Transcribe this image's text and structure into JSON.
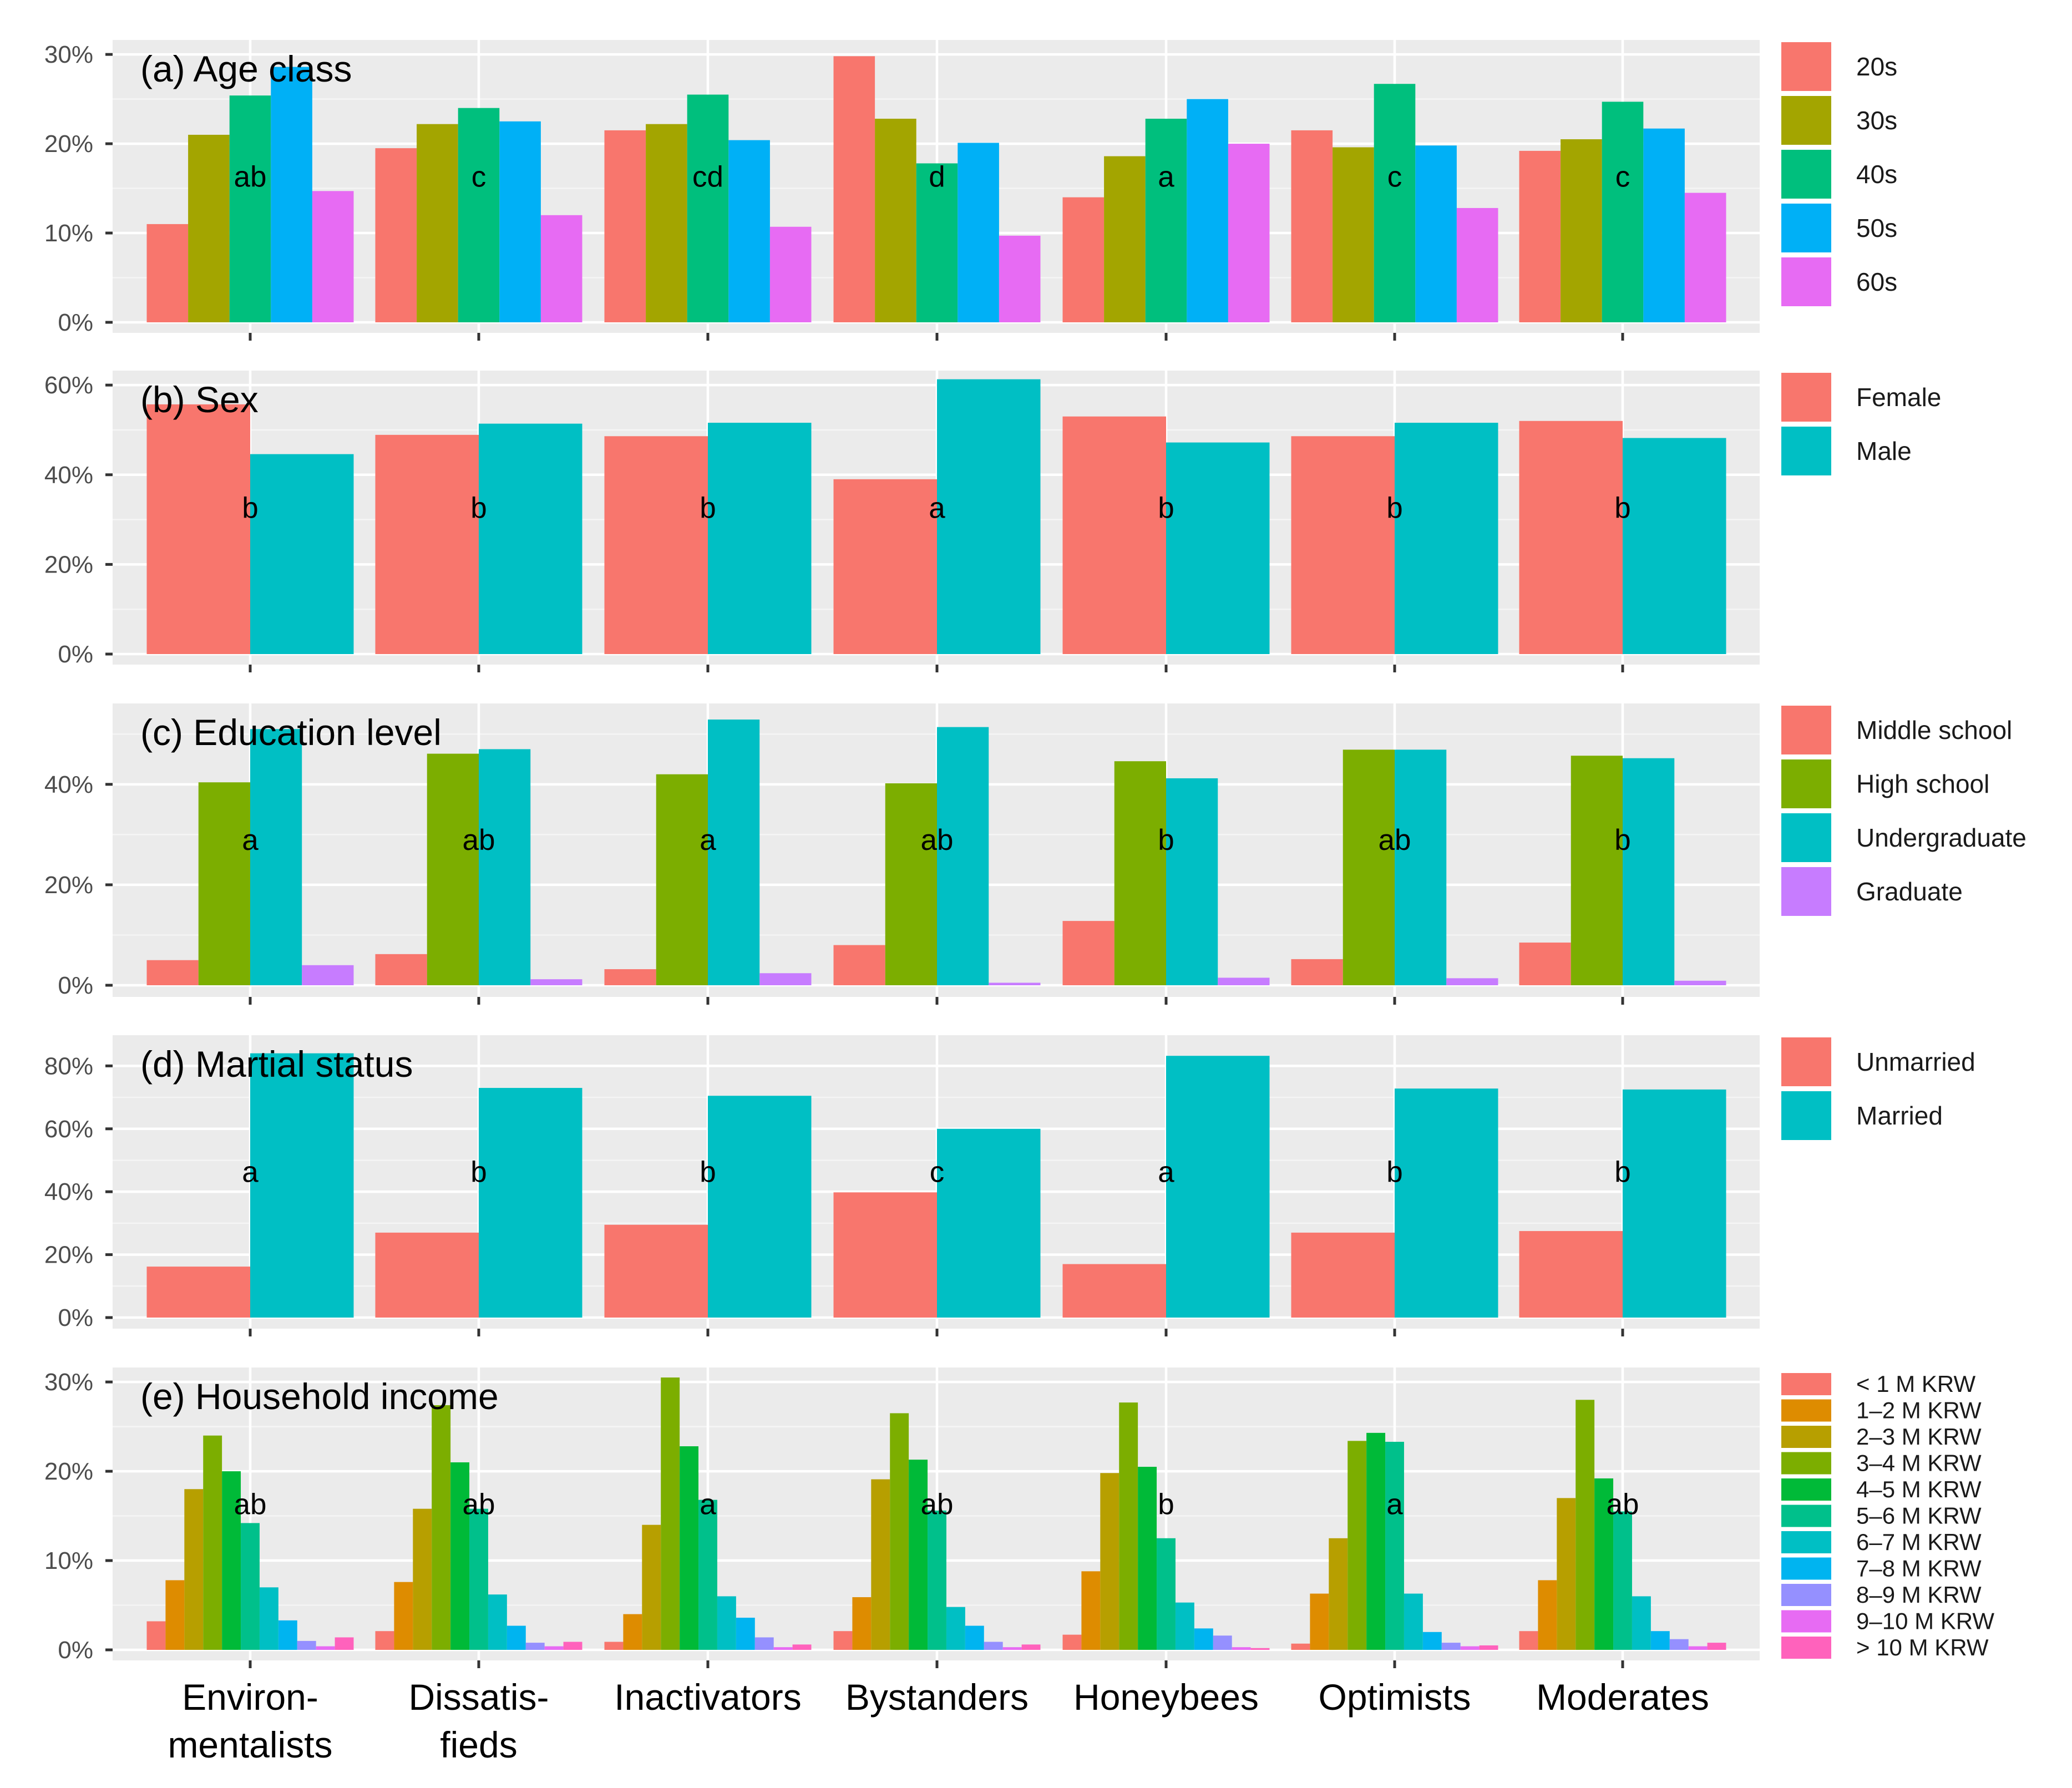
{
  "chart_data": {
    "type": "bar",
    "layout": "stacked panels, shared x axis",
    "categories": [
      "Environ-\nmentalists",
      "Dissatis-\nfieds",
      "Inactivators",
      "Bystanders",
      "Honeybees",
      "Optimists",
      "Moderates"
    ],
    "panels": [
      {
        "title": "(a) Age class",
        "ylim": [
          0,
          31
        ],
        "yticks": [
          0,
          10,
          20,
          30
        ],
        "tick_suffix": "%",
        "series": [
          {
            "name": "20s",
            "color": "#F8766D",
            "values": [
              11,
              19.5,
              21.5,
              29.8,
              14,
              21.5,
              19.2
            ]
          },
          {
            "name": "30s",
            "color": "#A3A500",
            "values": [
              21,
              22.2,
              22.2,
              22.8,
              18.6,
              19.6,
              20.5
            ]
          },
          {
            "name": "40s",
            "color": "#00BF7D",
            "values": [
              25.4,
              24,
              25.5,
              17.8,
              22.8,
              26.7,
              24.7
            ]
          },
          {
            "name": "50s",
            "color": "#00B0F6",
            "values": [
              28.6,
              22.5,
              20.4,
              20.1,
              25,
              19.8,
              21.7
            ]
          },
          {
            "name": "60s",
            "color": "#E76BF3",
            "values": [
              14.7,
              12,
              10.7,
              9.7,
              20,
              12.8,
              14.5
            ]
          }
        ],
        "significance": [
          "ab",
          "c",
          "cd",
          "d",
          "a",
          "c",
          "c"
        ]
      },
      {
        "title": "(b) Sex",
        "ylim": [
          0,
          62
        ],
        "yticks": [
          0,
          20,
          40,
          60
        ],
        "tick_suffix": "%",
        "series": [
          {
            "name": "Female",
            "color": "#F8766D",
            "values": [
              55.7,
              48.9,
              48.6,
              39,
              53,
              48.6,
              52
            ]
          },
          {
            "name": "Male",
            "color": "#00BFC4",
            "values": [
              44.6,
              51.4,
              51.6,
              61.3,
              47.2,
              51.6,
              48.2
            ]
          }
        ],
        "significance": [
          "b",
          "b",
          "b",
          "a",
          "b",
          "b",
          "b"
        ]
      },
      {
        "title": "(c) Education level",
        "ylim": [
          0,
          55
        ],
        "yticks": [
          0,
          20,
          40
        ],
        "tick_suffix": "%",
        "series": [
          {
            "name": "Middle school",
            "color": "#F8766D",
            "values": [
              5,
              6.2,
              3.2,
              8,
              12.8,
              5.2,
              8.5
            ]
          },
          {
            "name": "High school",
            "color": "#7CAE00",
            "values": [
              40.4,
              46.1,
              42,
              40.2,
              44.6,
              46.9,
              45.7
            ]
          },
          {
            "name": "Undergraduate",
            "color": "#00BFC4",
            "values": [
              51,
              47,
              52.9,
              51.4,
              41.2,
              46.9,
              45.2
            ]
          },
          {
            "name": "Graduate",
            "color": "#C77CFF",
            "values": [
              4,
              1.2,
              2.4,
              0.5,
              1.5,
              1.4,
              0.9
            ]
          }
        ],
        "significance": [
          "a",
          "ab",
          "a",
          "ab",
          "b",
          "ab",
          "b"
        ]
      },
      {
        "title": "(d) Martial status",
        "ylim": [
          0,
          88
        ],
        "yticks": [
          0,
          20,
          40,
          60,
          80
        ],
        "tick_suffix": "%",
        "series": [
          {
            "name": "Unmarried",
            "color": "#F8766D",
            "values": [
              16.2,
              27,
              29.5,
              39.8,
              17,
              27,
              27.5
            ]
          },
          {
            "name": "Married",
            "color": "#00BFC4",
            "values": [
              84,
              73,
              70.5,
              60,
              83.2,
              72.8,
              72.5
            ]
          }
        ],
        "significance": [
          "a",
          "b",
          "b",
          "c",
          "a",
          "b",
          "b"
        ]
      },
      {
        "title": "(e) Household income",
        "ylim": [
          0,
          31
        ],
        "yticks": [
          0,
          10,
          20,
          30
        ],
        "tick_suffix": "%",
        "series": [
          {
            "name": "< 1 M KRW",
            "color": "#F8766D",
            "values": [
              3.2,
              2.1,
              0.9,
              2.1,
              1.7,
              0.7,
              2.1
            ]
          },
          {
            "name": "1–2 M KRW",
            "color": "#DE8C00",
            "values": [
              7.8,
              7.6,
              4,
              5.9,
              8.8,
              6.3,
              7.8
            ]
          },
          {
            "name": "2–3 M KRW",
            "color": "#B79F00",
            "values": [
              18,
              15.8,
              14,
              19.1,
              19.8,
              12.5,
              17
            ]
          },
          {
            "name": "3–4 M KRW",
            "color": "#7CAE00",
            "values": [
              24,
              27.4,
              30.5,
              26.5,
              27.7,
              23.4,
              28
            ]
          },
          {
            "name": "4–5 M KRW",
            "color": "#00BA38",
            "values": [
              20,
              21,
              22.8,
              21.3,
              20.5,
              24.3,
              19.2
            ]
          },
          {
            "name": "5–6 M KRW",
            "color": "#00C08B",
            "values": [
              14.2,
              15.8,
              16.8,
              15.6,
              12.5,
              23.3,
              15.5
            ]
          },
          {
            "name": "6–7 M KRW",
            "color": "#00BFC4",
            "values": [
              7,
              6.2,
              6,
              4.8,
              5.3,
              6.3,
              6
            ]
          },
          {
            "name": "7–8 M KRW",
            "color": "#00B4F0",
            "values": [
              3.3,
              2.7,
              3.6,
              2.7,
              2.4,
              2,
              2.1
            ]
          },
          {
            "name": "8–9 M KRW",
            "color": "#9590FF",
            "values": [
              1,
              0.8,
              1.4,
              0.9,
              1.6,
              0.8,
              1.2
            ]
          },
          {
            "name": "9–10 M KRW",
            "color": "#E76BF3",
            "values": [
              0.4,
              0.4,
              0.3,
              0.3,
              0.3,
              0.4,
              0.4
            ]
          },
          {
            "name": "> 10 M KRW",
            "color": "#FF62BC",
            "values": [
              1.4,
              0.9,
              0.6,
              0.6,
              0.2,
              0.5,
              0.8
            ]
          }
        ],
        "significance": [
          "ab",
          "ab",
          "a",
          "ab",
          "b",
          "a",
          "ab"
        ]
      }
    ]
  }
}
